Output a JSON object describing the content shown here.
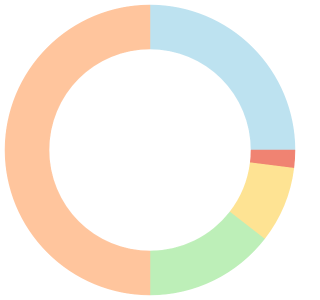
{
  "chart_data": {
    "type": "donut",
    "values": [
      25,
      2,
      8.5,
      14.5,
      50
    ],
    "colors": [
      "#bde2f0",
      "#f08372",
      "#fee393",
      "#bdefb8",
      "#ffc59d"
    ]
  }
}
